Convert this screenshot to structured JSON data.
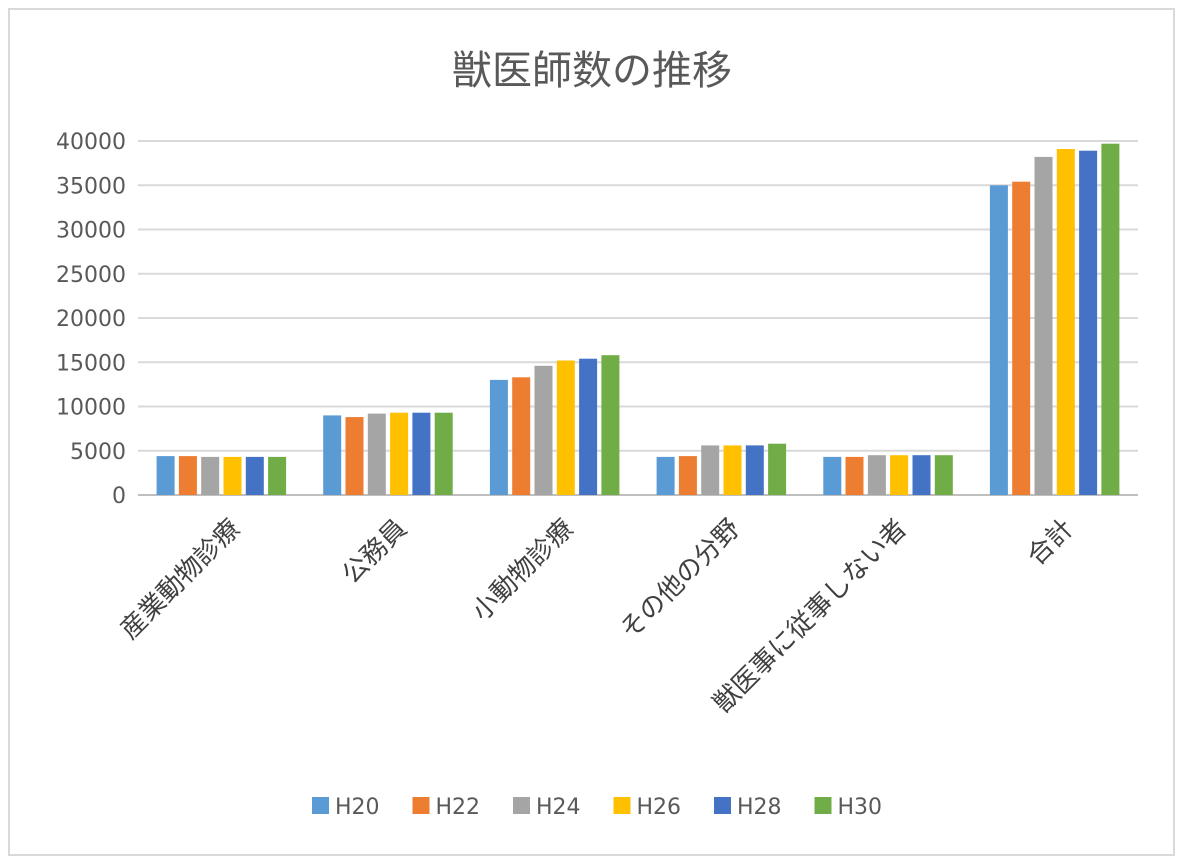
{
  "chart_data": {
    "type": "bar",
    "title": "獣医師数の推移",
    "categories": [
      "産業動物診療",
      "公務員",
      "小動物診療",
      "その他の分野",
      "獣医事に従事しない者",
      "合計"
    ],
    "series": [
      {
        "name": "H20",
        "color": "#5b9bd5",
        "values": [
          4400,
          9000,
          13000,
          4300,
          4300,
          35000
        ]
      },
      {
        "name": "H22",
        "color": "#ed7d31",
        "values": [
          4400,
          8800,
          13300,
          4400,
          4300,
          35400
        ]
      },
      {
        "name": "H24",
        "color": "#a5a5a5",
        "values": [
          4300,
          9200,
          14600,
          5600,
          4500,
          38200
        ]
      },
      {
        "name": "H26",
        "color": "#ffc000",
        "values": [
          4300,
          9300,
          15200,
          5600,
          4500,
          39100
        ]
      },
      {
        "name": "H28",
        "color": "#4472c4",
        "values": [
          4300,
          9300,
          15400,
          5600,
          4500,
          38900
        ]
      },
      {
        "name": "H30",
        "color": "#70ad47",
        "values": [
          4300,
          9300,
          15800,
          5800,
          4500,
          39700
        ]
      }
    ],
    "y_ticks": [
      "0",
      "5000",
      "10000",
      "15000",
      "20000",
      "25000",
      "30000",
      "35000",
      "40000"
    ],
    "ylim": [
      0,
      40000
    ],
    "grid": true,
    "legend_position": "bottom"
  }
}
